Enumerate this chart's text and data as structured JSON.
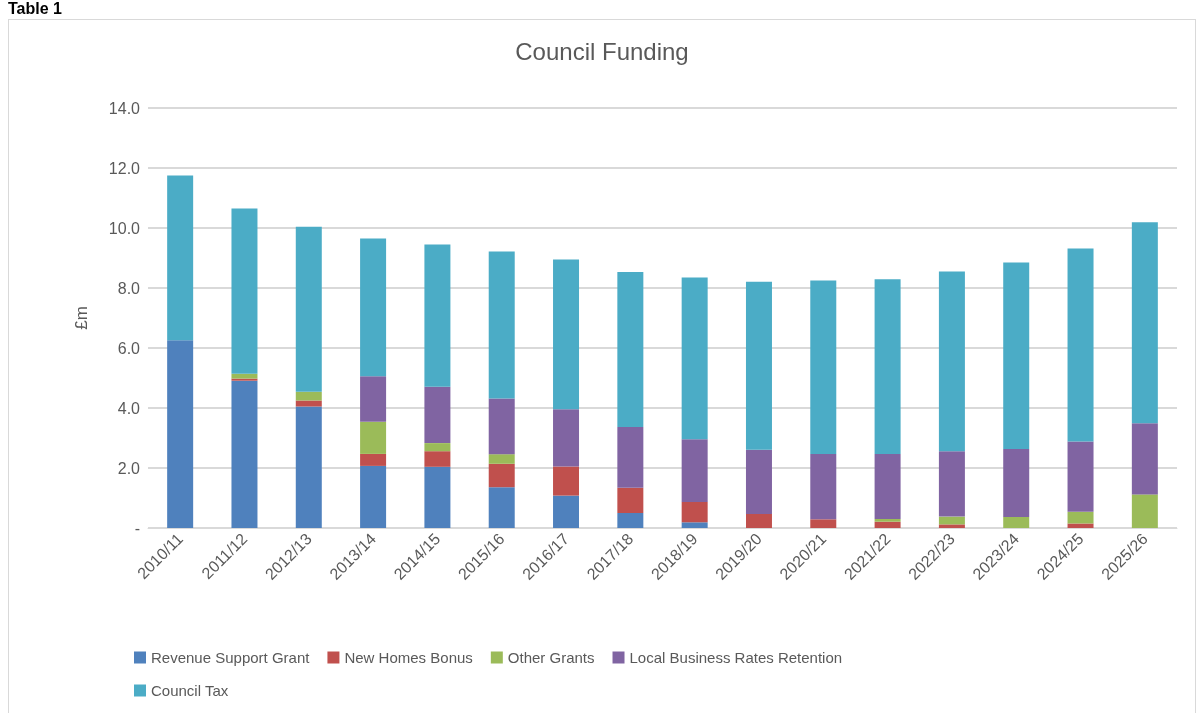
{
  "chart_data": {
    "type": "bar",
    "title": "Council Funding",
    "ylabel": "£m",
    "annotations": [
      "Table 1"
    ],
    "categories": [
      "2010/11",
      "2011/12",
      "2012/13",
      "2013/14",
      "2014/15",
      "2015/16",
      "2016/17",
      "2017/18",
      "2018/19",
      "2019/20",
      "2020/21",
      "2021/22",
      "2022/23",
      "2023/24",
      "2024/25",
      "2025/26"
    ],
    "stacked": true,
    "ylim": [
      0,
      14
    ],
    "yticks": [
      {
        "value": 0,
        "label": "-"
      },
      {
        "value": 2,
        "label": "2.0"
      },
      {
        "value": 4,
        "label": "4.0"
      },
      {
        "value": 6,
        "label": "6.0"
      },
      {
        "value": 8,
        "label": "8.0"
      },
      {
        "value": 10,
        "label": "10.0"
      },
      {
        "value": 12,
        "label": "12.0"
      },
      {
        "value": 14,
        "label": "14.0"
      }
    ],
    "grid": "y",
    "legend": "bottom",
    "series": [
      {
        "name": "Revenue Support Grant",
        "color": "#4f81bd",
        "values": [
          6.26,
          4.91,
          4.05,
          2.07,
          2.04,
          1.36,
          1.08,
          0.5,
          0.19,
          0,
          0,
          0,
          0,
          0,
          0,
          0
        ]
      },
      {
        "name": "New Homes Bonus",
        "color": "#c0504d",
        "values": [
          0,
          0.07,
          0.2,
          0.4,
          0.52,
          0.78,
          0.97,
          0.84,
          0.68,
          0.47,
          0.29,
          0.21,
          0.12,
          0,
          0.15,
          0
        ]
      },
      {
        "name": "Other Grants",
        "color": "#9bbb59",
        "values": [
          0,
          0.16,
          0.29,
          1.07,
          0.27,
          0.32,
          0,
          0,
          0,
          0,
          0,
          0.09,
          0.26,
          0.37,
          0.39,
          1.12
        ]
      },
      {
        "name": "Local Business Rates Retention",
        "color": "#8064a2",
        "values": [
          0,
          0,
          0,
          1.52,
          1.88,
          1.86,
          1.91,
          2.03,
          2.09,
          2.14,
          2.18,
          2.17,
          2.18,
          2.26,
          2.34,
          2.37
        ]
      },
      {
        "name": "Council Tax",
        "color": "#4bacc6",
        "values": [
          5.49,
          5.51,
          5.5,
          4.59,
          4.74,
          4.9,
          4.99,
          5.16,
          5.39,
          5.6,
          5.78,
          5.82,
          5.99,
          6.22,
          6.44,
          6.7
        ]
      }
    ]
  }
}
